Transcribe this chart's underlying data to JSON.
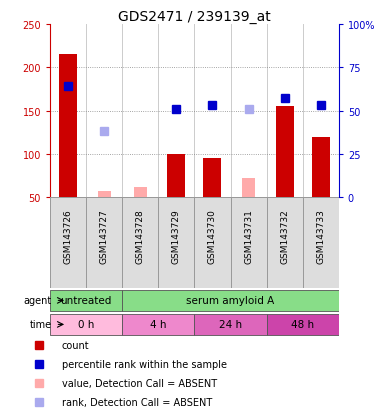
{
  "title": "GDS2471 / 239139_at",
  "samples": [
    "GSM143726",
    "GSM143727",
    "GSM143728",
    "GSM143729",
    "GSM143730",
    "GSM143731",
    "GSM143732",
    "GSM143733"
  ],
  "bar_values": [
    215,
    0,
    0,
    100,
    95,
    0,
    155,
    120
  ],
  "bar_color": "#cc0000",
  "blue_square_values": [
    178,
    null,
    null,
    152,
    157,
    null,
    165,
    157
  ],
  "blue_square_color": "#0000cc",
  "pink_bar_values": [
    null,
    57,
    62,
    null,
    null,
    72,
    null,
    null
  ],
  "pink_bar_color": "#ffaaaa",
  "light_blue_square_values": [
    null,
    127,
    null,
    null,
    null,
    152,
    null,
    null
  ],
  "light_blue_square_color": "#aaaaee",
  "ylim_left": [
    50,
    250
  ],
  "ylim_right": [
    0,
    100
  ],
  "yticks_left": [
    50,
    100,
    150,
    200,
    250
  ],
  "yticks_right": [
    0,
    25,
    50,
    75,
    100
  ],
  "ytick_labels_left": [
    "50",
    "100",
    "150",
    "200",
    "250"
  ],
  "ytick_labels_right": [
    "0",
    "25",
    "50",
    "75",
    "100%"
  ],
  "left_axis_color": "#cc0000",
  "right_axis_color": "#0000cc",
  "hlines": [
    100,
    150,
    200
  ],
  "bar_width": 0.5,
  "pink_bar_width": 0.35,
  "sq_size": 6,
  "grid_color": "#888888",
  "bg_color": "#dddddd",
  "plot_bg": "#ffffff",
  "agent_untreated": {
    "text": "untreated",
    "start": 0,
    "end": 2,
    "color": "#88dd88"
  },
  "agent_serum": {
    "text": "serum amyloid A",
    "start": 2,
    "end": 8,
    "color": "#88dd88"
  },
  "time_boxes": [
    {
      "text": "0 h",
      "start": 0,
      "end": 2,
      "color": "#ffbbdd"
    },
    {
      "text": "4 h",
      "start": 2,
      "end": 4,
      "color": "#ee88cc"
    },
    {
      "text": "24 h",
      "start": 4,
      "end": 6,
      "color": "#dd66bb"
    },
    {
      "text": "48 h",
      "start": 6,
      "end": 8,
      "color": "#cc44aa"
    }
  ],
  "legend_items": [
    {
      "label": "count",
      "color": "#cc0000",
      "alpha": 1.0
    },
    {
      "label": "percentile rank within the sample",
      "color": "#0000cc",
      "alpha": 1.0
    },
    {
      "label": "value, Detection Call = ABSENT",
      "color": "#ffaaaa",
      "alpha": 1.0
    },
    {
      "label": "rank, Detection Call = ABSENT",
      "color": "#aaaaee",
      "alpha": 1.0
    }
  ]
}
